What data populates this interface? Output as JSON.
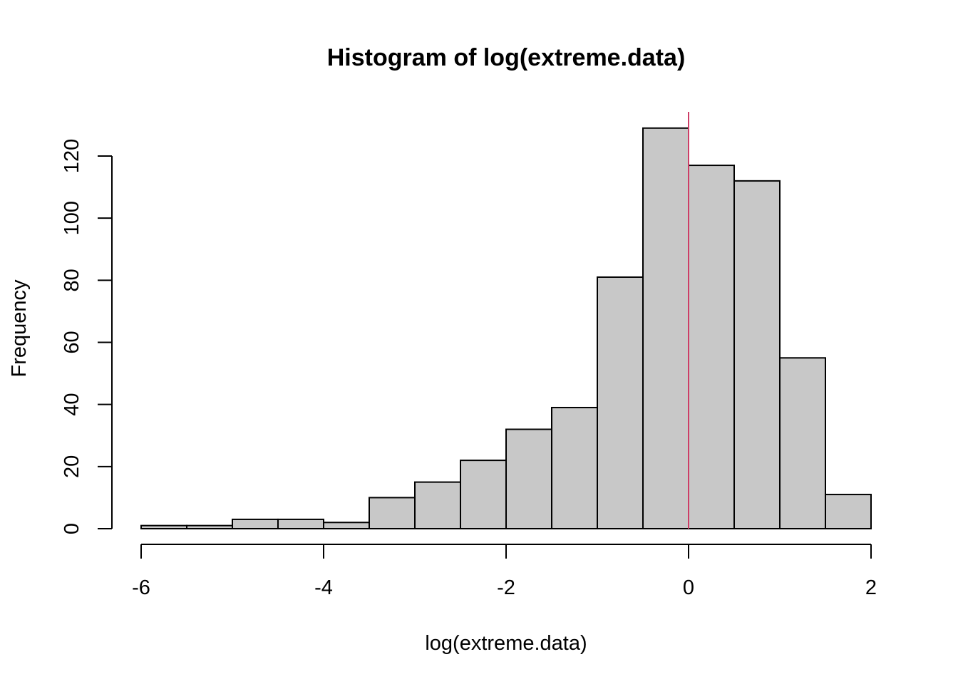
{
  "chart_data": {
    "type": "bar",
    "title": "Histogram of log(extreme.data)",
    "xlabel": "log(extreme.data)",
    "ylabel": "Frequency",
    "bin_edges": [
      -6,
      -5.5,
      -5,
      -4.5,
      -4,
      -3.5,
      -3,
      -2.5,
      -2,
      -1.5,
      -1,
      -0.5,
      0,
      0.5,
      1,
      1.5,
      2
    ],
    "values": [
      1,
      1,
      3,
      3,
      2,
      10,
      15,
      22,
      32,
      39,
      81,
      129,
      117,
      112,
      55,
      11
    ],
    "xlim": [
      -6,
      2
    ],
    "ylim": [
      0,
      129
    ],
    "xticks": [
      -6,
      -4,
      -2,
      0,
      2
    ],
    "xtick_labels": [
      "-6",
      "-4",
      "-2",
      "0",
      "2"
    ],
    "yticks": [
      0,
      20,
      40,
      60,
      80,
      100,
      120
    ],
    "ytick_labels": [
      "0",
      "20",
      "40",
      "60",
      "80",
      "100",
      "120"
    ],
    "reference_line": {
      "x": 0,
      "color": "#cd3d66"
    },
    "bar_color": "#c8c8c8",
    "grid": false
  }
}
